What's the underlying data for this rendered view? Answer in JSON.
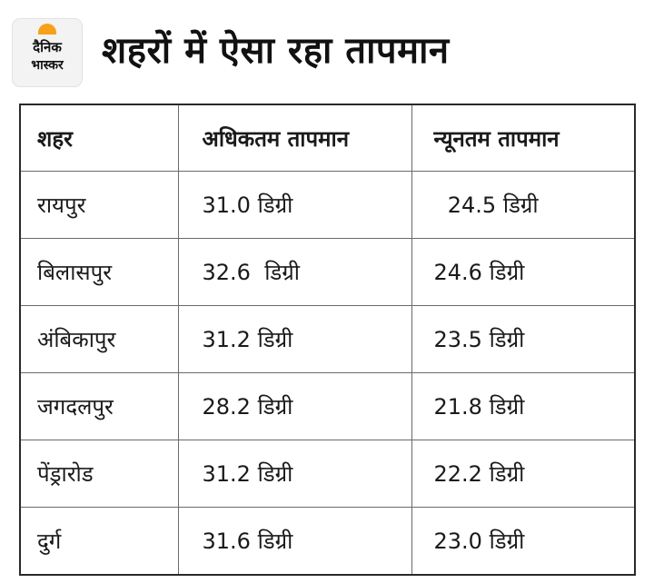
{
  "brand": {
    "line1": "दैनिक",
    "line2": "भास्कर"
  },
  "title": "शहरों में ऐसा रहा तापमान",
  "table": {
    "headers": [
      "शहर",
      "अधिकतम तापमान",
      "न्यूनतम तापमान"
    ],
    "rows": [
      [
        "रायपुर",
        "31.0 डिग्री",
        "  24.5 डिग्री"
      ],
      [
        "बिलासपुर",
        "32.6  डिग्री",
        "24.6 डिग्री"
      ],
      [
        "अंबिकापुर",
        "31.2 डिग्री",
        "23.5 डिग्री"
      ],
      [
        "जगदलपुर",
        "28.2 डिग्री",
        "21.8 डिग्री"
      ],
      [
        "पेंड्रारोड",
        "31.2 डिग्री",
        "22.2 डिग्री"
      ],
      [
        "दुर्ग",
        "31.6 डिग्री",
        "23.0 डिग्री"
      ]
    ]
  }
}
